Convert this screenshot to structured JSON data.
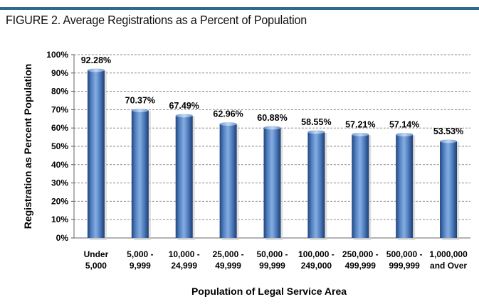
{
  "figure_title": "FIGURE 2. Average Registrations as a Percent of Population",
  "colors": {
    "rule": "#2e6b93",
    "bar_light": "#7aa3d8",
    "bar_mid": "#4a79bd",
    "bar_dark": "#23447a",
    "grid": "#8a8a8a"
  },
  "chart_data": {
    "type": "bar",
    "xlabel": "Population of Legal Service Area",
    "ylabel": "Registration as Percent Population",
    "ylim": [
      0,
      100
    ],
    "yticks": [
      "0%",
      "10%",
      "20%",
      "30%",
      "40%",
      "50%",
      "60%",
      "70%",
      "80%",
      "90%",
      "100%"
    ],
    "grid": true,
    "categories": [
      [
        "Under",
        "5,000"
      ],
      [
        "5,000 -",
        "9,999"
      ],
      [
        "10,000 -",
        "24,999"
      ],
      [
        "25,000 -",
        "49,999"
      ],
      [
        "50,000 -",
        "99,999"
      ],
      [
        "100,000 -",
        "249,000"
      ],
      [
        "250,000 -",
        "499,999"
      ],
      [
        "500,000 -",
        "999,999"
      ],
      [
        "1,000,000",
        "and Over"
      ]
    ],
    "values": [
      92.28,
      70.37,
      67.49,
      62.96,
      60.88,
      58.55,
      57.21,
      57.14,
      53.53
    ],
    "data_labels": [
      "92.28%",
      "70.37%",
      "67.49%",
      "62.96%",
      "60.88%",
      "58.55%",
      "57.21%",
      "57.14%",
      "53.53%"
    ]
  }
}
